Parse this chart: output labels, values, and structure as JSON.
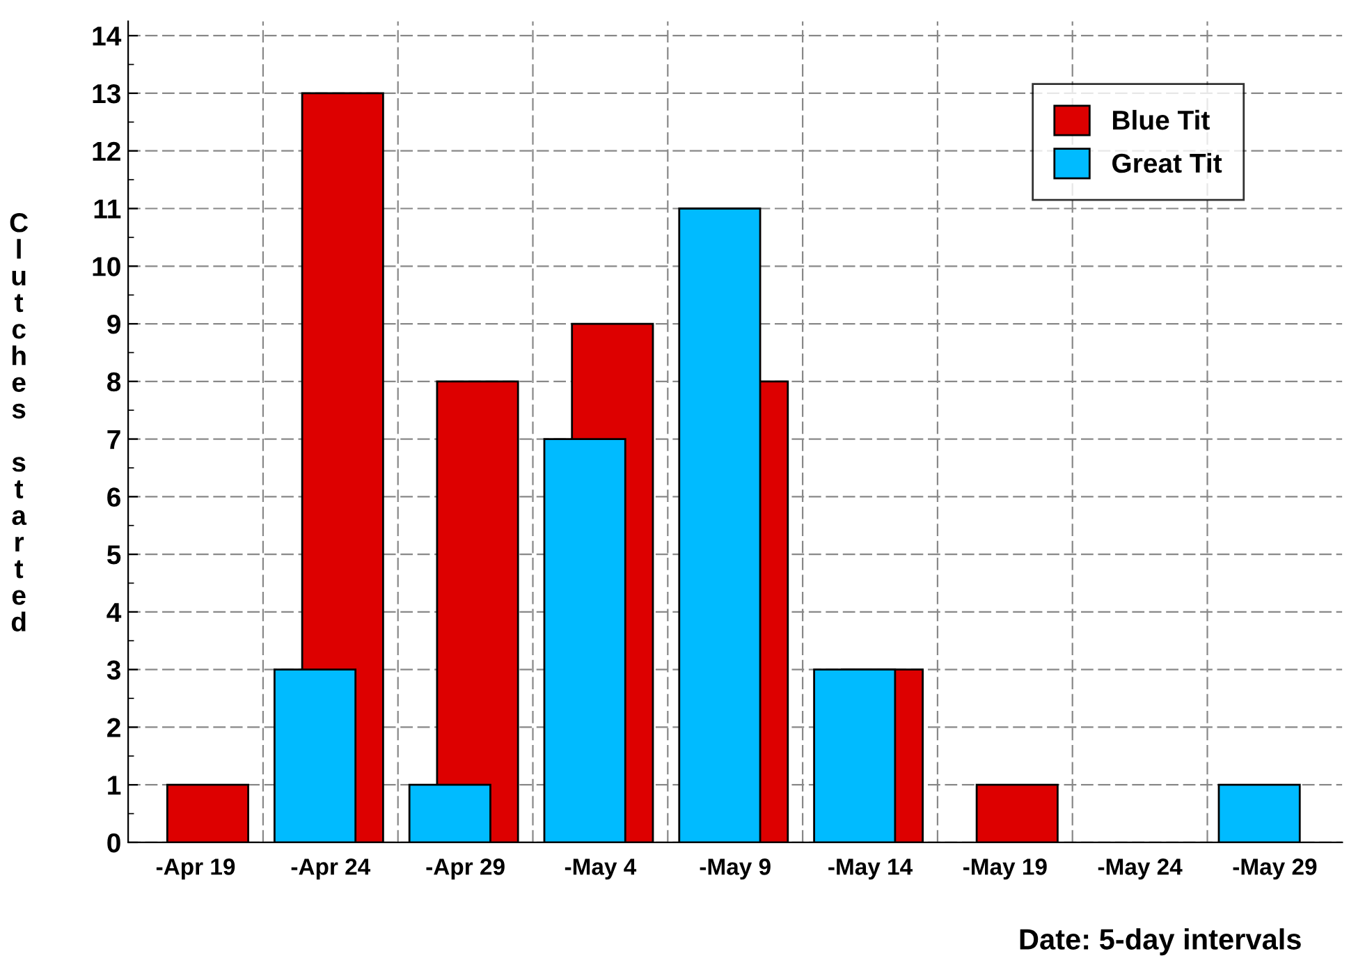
{
  "chart_data": {
    "type": "bar",
    "xlabel": "Date: 5-day intervals",
    "ylabel": "Clutches started",
    "categories": [
      "-Apr 19",
      "-Apr 24",
      "-Apr 29",
      "-May 4",
      "-May 9",
      "-May 14",
      "-May 19",
      "-May 24",
      "-May 29"
    ],
    "series": [
      {
        "name": "Great Tit",
        "color": "#00bbff",
        "values": [
          null,
          3,
          1,
          7,
          11,
          3,
          null,
          null,
          1
        ]
      },
      {
        "name": "Blue Tit",
        "color": "#dd0000",
        "values": [
          1,
          13,
          8,
          9,
          8,
          3,
          1,
          null,
          null
        ]
      }
    ],
    "ylim": [
      0,
      14.25
    ],
    "yticks": [
      0,
      1,
      2,
      3,
      4,
      5,
      6,
      7,
      8,
      9,
      10,
      11,
      12,
      13,
      14
    ],
    "grid": true,
    "legend": "top right"
  }
}
